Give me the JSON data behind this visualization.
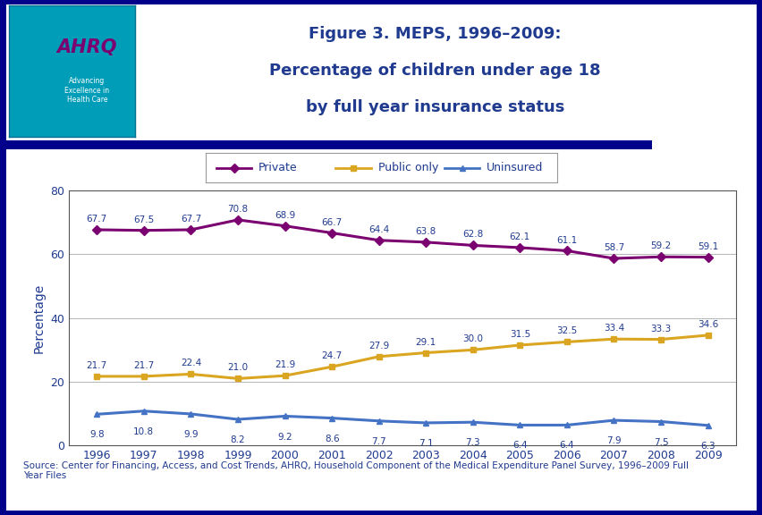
{
  "years": [
    1996,
    1997,
    1998,
    1999,
    2000,
    2001,
    2002,
    2003,
    2004,
    2005,
    2006,
    2007,
    2008,
    2009
  ],
  "private": [
    67.7,
    67.5,
    67.7,
    70.8,
    68.9,
    66.7,
    64.4,
    63.8,
    62.8,
    62.1,
    61.1,
    58.7,
    59.2,
    59.1
  ],
  "public_only": [
    21.7,
    21.7,
    22.4,
    21.0,
    21.9,
    24.7,
    27.9,
    29.1,
    30.0,
    31.5,
    32.5,
    33.4,
    33.3,
    34.6
  ],
  "uninsured": [
    9.8,
    10.8,
    9.9,
    8.2,
    9.2,
    8.6,
    7.7,
    7.1,
    7.3,
    6.4,
    6.4,
    7.9,
    7.5,
    6.3
  ],
  "private_color": "#7B0070",
  "public_color": "#DAA520",
  "uninsured_color": "#4472C4",
  "title_line1": "Figure 3. MEPS, 1996–2009:",
  "title_line2": "Percentage of children under age 18",
  "title_line3": "by full year insurance status",
  "ylabel": "Percentage",
  "ylim": [
    0,
    80
  ],
  "yticks": [
    0,
    20,
    40,
    60,
    80
  ],
  "outer_bg": "#FFFFFF",
  "plot_bg_color": "#FFFFFF",
  "title_color": "#1F3A8F",
  "source_text": "Source: Center for Financing, Access, and Cost Trends, AHRQ, Household Component of the Medical Expenditure Panel Survey, 1996–2009 Full\nYear Files",
  "header_bar_color": "#00008B",
  "legend_labels": [
    "Private",
    "Public only",
    "Uninsured"
  ],
  "footer_border_color": "#00008B",
  "grid_color": "#AAAAAA"
}
